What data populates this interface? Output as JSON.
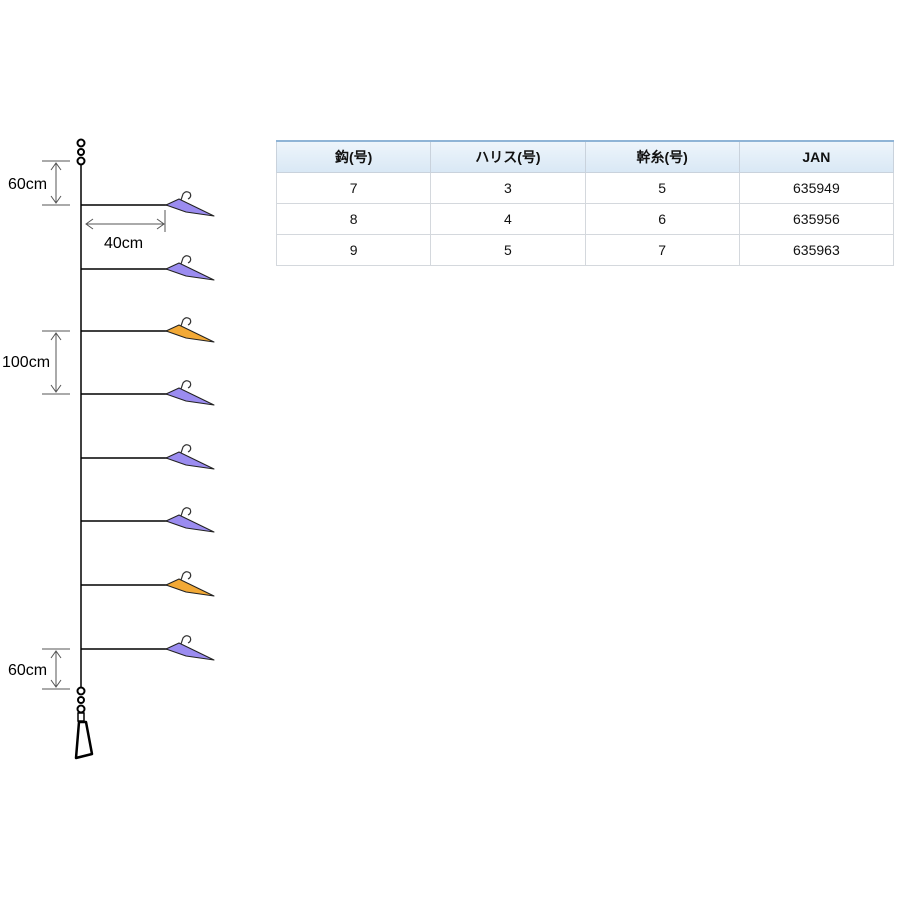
{
  "rig": {
    "labels": {
      "top_spacing": "60cm",
      "branch_length": "40cm",
      "branch_spacing": "100cm",
      "bottom_spacing": "60cm"
    },
    "colors": {
      "line": "#000000",
      "lure_purple": "#9b8cf0",
      "lure_orange": "#f2a936",
      "dimension": "#555555"
    },
    "lures": [
      {
        "color": "purple"
      },
      {
        "color": "purple"
      },
      {
        "color": "orange"
      },
      {
        "color": "purple"
      },
      {
        "color": "purple"
      },
      {
        "color": "purple"
      },
      {
        "color": "orange"
      },
      {
        "color": "purple"
      }
    ]
  },
  "table": {
    "headers": [
      "鈎(号)",
      "ハリス(号)",
      "幹糸(号)",
      "JAN"
    ],
    "rows": [
      [
        "7",
        "3",
        "5",
        "635949"
      ],
      [
        "8",
        "4",
        "6",
        "635956"
      ],
      [
        "9",
        "5",
        "7",
        "635963"
      ]
    ]
  }
}
